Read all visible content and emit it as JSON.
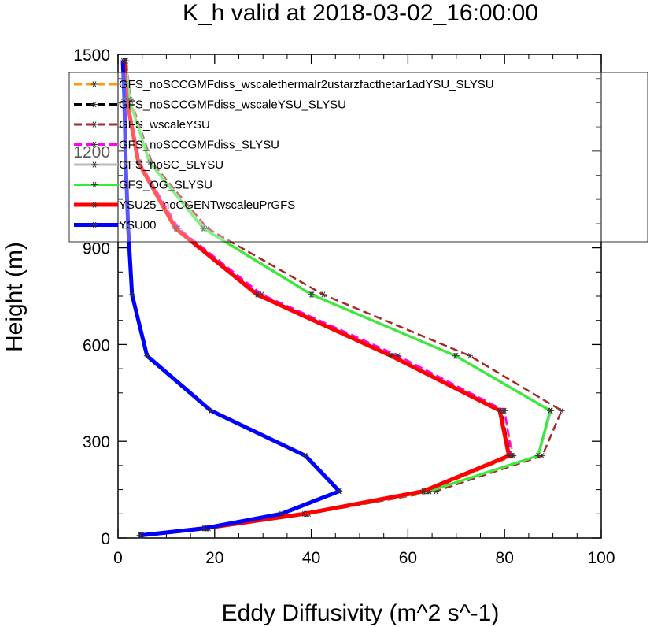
{
  "chart_data": {
    "type": "line",
    "title": "K_h valid at 2018-03-02_16:00:00",
    "xlabel": "Eddy Diffusivity (m^2 s^-1)",
    "ylabel": "Height (m)",
    "xlim": [
      0,
      100
    ],
    "ylim": [
      0,
      1500
    ],
    "xticks": [
      0,
      20,
      40,
      60,
      80,
      100
    ],
    "yticks": [
      0,
      300,
      600,
      900,
      1200,
      1500
    ],
    "xtick_labels": [
      "0",
      "20",
      "40",
      "60",
      "80",
      "100"
    ],
    "ytick_labels": [
      "0",
      "300",
      "600",
      "900",
      "1200",
      "1500"
    ],
    "grid": false,
    "legend_position": "top-right",
    "marker": "asterisk",
    "y": [
      8,
      30,
      75,
      145,
      255,
      395,
      565,
      755,
      960,
      1165,
      1360,
      1480
    ],
    "series": [
      {
        "name": "GFS_noSCCGMFdiss_wscalethermalr2ustarzfacthetar1adYSU_SLYSU",
        "color": "#ff9900",
        "dash": "dashed",
        "values": [
          4.8,
          18.5,
          39.2,
          64.0,
          81.8,
          79.8,
          57.2,
          29.3,
          12.3,
          4.4,
          2.0,
          1.4
        ]
      },
      {
        "name": "GFS_noSCCGMFdiss_wscaleYSU_SLYSU",
        "color": "#000000",
        "dash": "dashed",
        "values": [
          4.7,
          18.2,
          38.8,
          63.6,
          81.2,
          79.3,
          56.9,
          29.0,
          12.1,
          4.3,
          1.9,
          1.3
        ]
      },
      {
        "name": "GFS_wscaleYSU",
        "color": "#a52a2a",
        "dash": "dashed",
        "values": [
          5.0,
          18.8,
          39.5,
          65.8,
          87.8,
          91.8,
          72.8,
          42.5,
          18.5,
          7.0,
          2.6,
          1.7
        ]
      },
      {
        "name": "GFS_noSCCGMFdiss_SLYSU",
        "color": "#ff00ff",
        "dash": "dashed",
        "values": [
          4.8,
          18.3,
          38.9,
          63.8,
          81.5,
          80.0,
          58.0,
          29.8,
          12.5,
          4.5,
          2.0,
          1.4
        ]
      },
      {
        "name": "GFS_noSC_SLYSU",
        "color": "#bbbbbb",
        "dash": "solid",
        "values": [
          4.9,
          18.5,
          39.0,
          64.5,
          87.0,
          89.6,
          70.0,
          40.2,
          17.8,
          6.6,
          2.4,
          1.6
        ]
      },
      {
        "name": "GFS_OG_SLYSU",
        "color": "#33ee33",
        "dash": "solid",
        "values": [
          4.9,
          18.4,
          39.0,
          64.3,
          86.9,
          89.4,
          69.8,
          40.0,
          17.6,
          6.5,
          2.3,
          1.5
        ]
      },
      {
        "name": "YSU25_noCGENTwscaleuPrGFS",
        "color": "#ff0000",
        "dash": "solid",
        "values": [
          4.6,
          18.0,
          38.5,
          63.2,
          80.9,
          79.0,
          56.5,
          28.8,
          11.9,
          4.2,
          1.8,
          1.3
        ]
      },
      {
        "name": "YSU00",
        "color": "#0000ff",
        "dash": "solid",
        "values": [
          4.5,
          17.8,
          33.8,
          45.8,
          38.8,
          19.2,
          6.0,
          2.9,
          2.1,
          1.6,
          1.3,
          1.0
        ]
      }
    ]
  }
}
